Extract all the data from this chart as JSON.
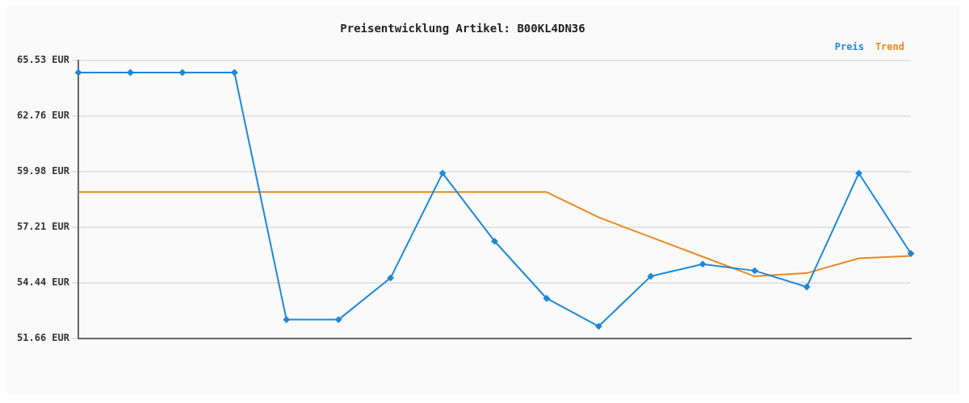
{
  "chart_data": {
    "type": "line",
    "title": "Preisentwicklung Artikel: B00KL4DN36",
    "categories": [
      null,
      null,
      null,
      null,
      null,
      null,
      null,
      null,
      null,
      null,
      null,
      null,
      null,
      null,
      null,
      null,
      null
    ],
    "series": [
      {
        "name": "Preis",
        "color": "#1e88d8",
        "marker": "diamond",
        "values": [
          64.92,
          64.92,
          64.92,
          64.92,
          52.6,
          52.6,
          54.68,
          59.9,
          56.51,
          53.66,
          52.27,
          54.76,
          55.37,
          55.04,
          54.23,
          59.9,
          55.9
        ]
      },
      {
        "name": "Trend",
        "color": "#e88a1e",
        "marker": "none",
        "values": [
          58.96,
          58.96,
          58.96,
          58.96,
          58.96,
          58.96,
          58.96,
          58.96,
          58.96,
          58.96,
          57.7,
          56.72,
          55.74,
          54.76,
          54.92,
          55.66,
          55.78
        ]
      }
    ],
    "ylim": [
      51.66,
      65.53
    ],
    "yticks": [
      {
        "value": 51.66,
        "label": "51.66 EUR"
      },
      {
        "value": 54.44,
        "label": "54.44 EUR"
      },
      {
        "value": 57.21,
        "label": "57.21 EUR"
      },
      {
        "value": 59.98,
        "label": "59.98 EUR"
      },
      {
        "value": 62.76,
        "label": "62.76 EUR"
      },
      {
        "value": 65.53,
        "label": "65.53 EUR"
      }
    ],
    "grid": "y",
    "legend": "top right",
    "tick_labels": "y"
  }
}
